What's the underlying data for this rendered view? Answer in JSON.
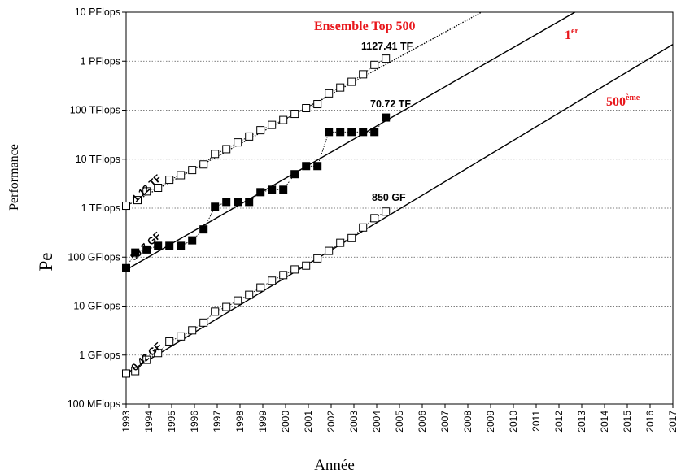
{
  "chart_data": {
    "type": "scatter",
    "title": "",
    "xlabel": "Année",
    "ylabel": "Performance",
    "ylabel_symbol": "Pe",
    "y_scale": "log",
    "xlim": [
      1993,
      2017
    ],
    "ylim_flops": [
      100000000,
      10000000000000000
    ],
    "grid": "horizontal dotted",
    "x_ticks": [
      "1993",
      "1994",
      "1995",
      "1996",
      "1997",
      "1998",
      "1999",
      "2000",
      "2001",
      "2002",
      "2003",
      "2004",
      "2005",
      "2006",
      "2007",
      "2008",
      "2009",
      "2010",
      "2011",
      "2012",
      "2013",
      "2014",
      "2015",
      "2016",
      "2017"
    ],
    "y_ticks": [
      {
        "label": "100 MFlops",
        "value_gflops": 0.1
      },
      {
        "label": "1 GFlops",
        "value_gflops": 1
      },
      {
        "label": "10 GFlops",
        "value_gflops": 10
      },
      {
        "label": "100 GFlops",
        "value_gflops": 100
      },
      {
        "label": "1 TFlops",
        "value_gflops": 1000
      },
      {
        "label": "10 TFlops",
        "value_gflops": 10000
      },
      {
        "label": "100 TFlops",
        "value_gflops": 100000
      },
      {
        "label": "1 PFlops",
        "value_gflops": 1000000
      },
      {
        "label": "10 PFlops",
        "value_gflops": 10000000
      }
    ],
    "series": [
      {
        "name": "Ensemble Top 500",
        "marker": "open-square",
        "units": "GFlops",
        "x": [
          1993.0,
          1993.5,
          1993.9,
          1994.4,
          1994.9,
          1995.4,
          1995.9,
          1996.4,
          1996.9,
          1997.4,
          1997.9,
          1998.4,
          1998.9,
          1999.4,
          1999.9,
          2000.4,
          2000.9,
          2001.4,
          2001.9,
          2002.4,
          2002.9,
          2003.4,
          2003.9,
          2004.4
        ],
        "y": [
          1120,
          1460,
          2200,
          2600,
          3800,
          4700,
          6000,
          7800,
          12800,
          16000,
          22000,
          29000,
          39000,
          50000,
          63000,
          84000,
          110000,
          133000,
          220000,
          290000,
          380000,
          540000,
          840000,
          1127410
        ],
        "trend": {
          "x": [
            1993.0,
            2008.6
          ],
          "y": [
            1100,
            10000000
          ],
          "style": "dotted"
        }
      },
      {
        "name": "1er",
        "marker": "filled-square",
        "units": "GFlops",
        "x": [
          1993.0,
          1993.4,
          1993.9,
          1994.4,
          1994.9,
          1995.4,
          1995.9,
          1996.4,
          1996.9,
          1997.4,
          1997.9,
          1998.4,
          1998.9,
          1999.4,
          1999.9,
          2000.4,
          2000.9,
          2001.4,
          2001.9,
          2002.4,
          2002.9,
          2003.4,
          2003.9,
          2004.4
        ],
        "y": [
          59.7,
          124,
          143,
          170,
          170,
          170,
          220,
          368,
          1068,
          1338,
          1338,
          1338,
          2121,
          2380,
          2380,
          4938,
          7226,
          7226,
          35860,
          35860,
          35860,
          35860,
          35860,
          70720
        ],
        "trend": {
          "x": [
            1993.0,
            2012.7
          ],
          "y": [
            55,
            10000000
          ],
          "style": "solid"
        }
      },
      {
        "name": "500ème",
        "marker": "open-square",
        "units": "GFlops",
        "x": [
          1993.0,
          1993.4,
          1993.9,
          1994.4,
          1994.9,
          1995.4,
          1995.9,
          1996.4,
          1996.9,
          1997.4,
          1997.9,
          1998.4,
          1998.9,
          1999.4,
          1999.9,
          2000.4,
          2000.9,
          2001.4,
          2001.9,
          2002.4,
          2002.9,
          2003.4,
          2003.9,
          2004.4
        ],
        "y": [
          0.42,
          0.47,
          0.8,
          1.1,
          1.9,
          2.4,
          3.2,
          4.6,
          7.7,
          9.6,
          13,
          17,
          24,
          33,
          43,
          56,
          67,
          94,
          134,
          196,
          245,
          403,
          624,
          850
        ],
        "trend": {
          "x": [
            1993.0,
            2017.0
          ],
          "y": [
            0.42,
            2200000
          ],
          "style": "solid"
        }
      }
    ],
    "annotations": [
      {
        "text": "1.12 TF",
        "series": 0
      },
      {
        "text": "1127.41 TF",
        "series": 0
      },
      {
        "text": "59.7 GF",
        "series": 1
      },
      {
        "text": "70.72 TF",
        "series": 1
      },
      {
        "text": "0.42 GF",
        "series": 2
      },
      {
        "text": "850 GF",
        "series": 2
      }
    ],
    "series_labels": {
      "top500": "Ensemble Top 500",
      "first_base": "1",
      "first_sup": "er",
      "last_base": "500",
      "last_sup": "ème"
    }
  }
}
